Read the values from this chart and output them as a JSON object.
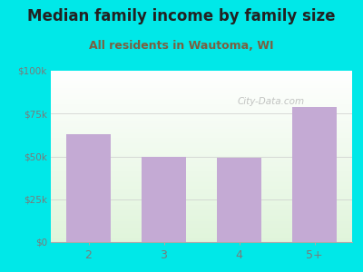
{
  "title": "Median family income by family size",
  "subtitle": "All residents in Wautoma, WI",
  "categories": [
    "2",
    "3",
    "4",
    "5+"
  ],
  "values": [
    63000,
    50000,
    49000,
    79000
  ],
  "bar_color": "#c4aad4",
  "background_color": "#00e8e8",
  "plot_bg_color1": "#f0f8ee",
  "plot_bg_color2": "#ffffff",
  "ylim": [
    0,
    100000
  ],
  "yticks": [
    0,
    25000,
    50000,
    75000,
    100000
  ],
  "ytick_labels": [
    "$0",
    "$25k",
    "$50k",
    "$75k",
    "$100k"
  ],
  "title_fontsize": 12,
  "subtitle_fontsize": 9,
  "title_color": "#222222",
  "subtitle_color": "#7a6040",
  "tick_color": "#7a7a7a",
  "watermark": "City-Data.com"
}
